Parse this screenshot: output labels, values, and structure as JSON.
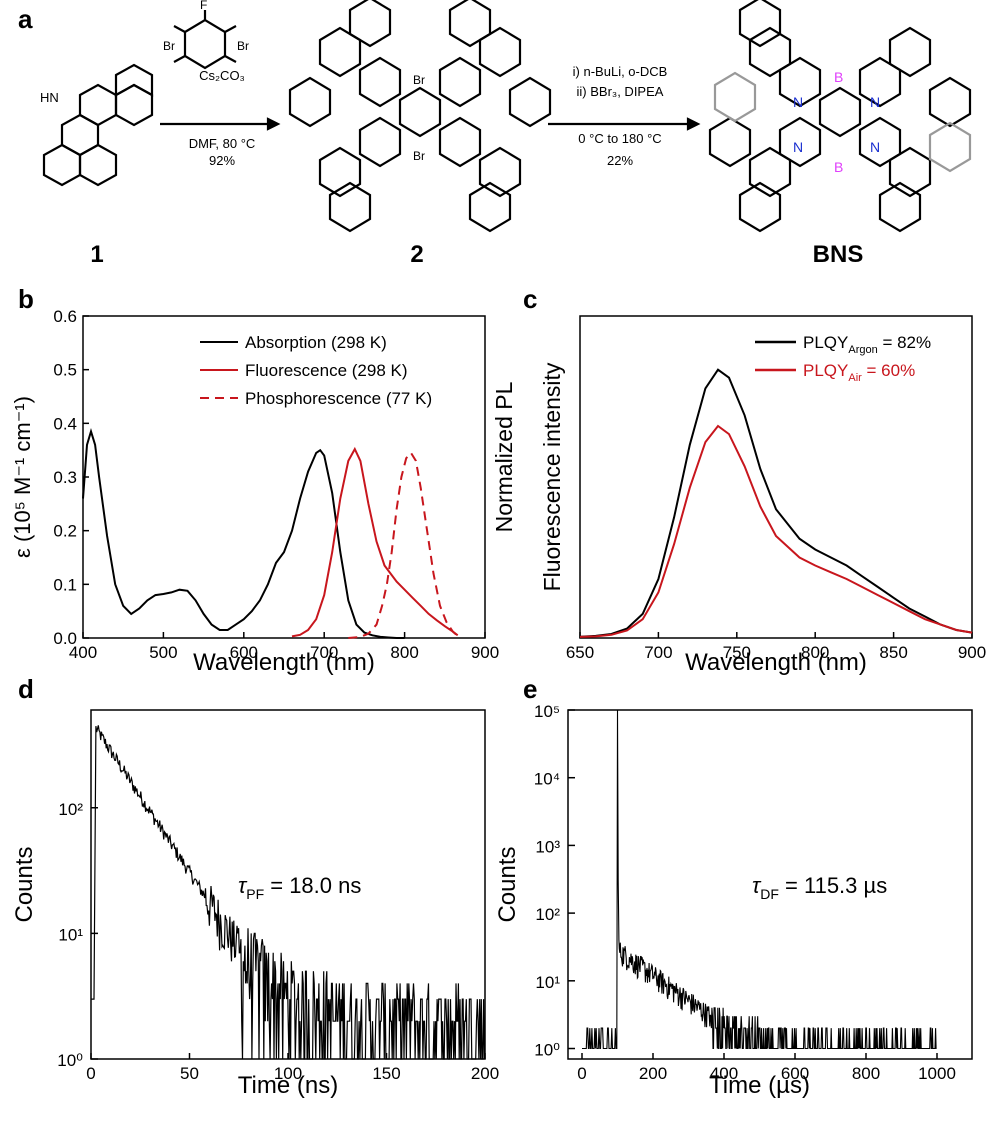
{
  "panel_labels": [
    "a",
    "b",
    "c",
    "d",
    "e"
  ],
  "scheme": {
    "compound_labels": [
      "1",
      "2",
      "BNS"
    ],
    "reagent_names": {
      "nh": "HN",
      "f": "F",
      "br": "Br",
      "n": "N",
      "b": "B"
    },
    "step1": {
      "base": "Cs₂CO₃",
      "cond": "DMF, 80 °C",
      "yield": "92%"
    },
    "step2": {
      "l1": "i) n-BuLi, o-DCB",
      "l2": "ii) BBr₃, DIPEA",
      "l3": "0 °C to 180 °C",
      "yield": "22%"
    },
    "colors": {
      "boron": "#e040fb",
      "nitrogen": "#1a2fd0",
      "gray_ring": "#999999"
    }
  },
  "colors": {
    "black": "#000000",
    "red": "#c8161d"
  },
  "chart_data": [
    {
      "panel": "b",
      "type": "line",
      "xlabel": "Wavelength (nm)",
      "ylabel": "ε (10⁵ M⁻¹ cm⁻¹)",
      "xlim": [
        400,
        900
      ],
      "ylim": [
        0,
        0.6
      ],
      "xticks": [
        400,
        500,
        600,
        700,
        800,
        900
      ],
      "yticks": [
        0.0,
        0.1,
        0.2,
        0.3,
        0.4,
        0.5,
        0.6
      ],
      "xtick_labels": [
        "400",
        "500",
        "600",
        "700",
        "800",
        "900"
      ],
      "ytick_labels": [
        "0.0",
        "0.1",
        "0.2",
        "0.3",
        "0.4",
        "0.5",
        "0.6"
      ],
      "legend_position": "top-right",
      "series": [
        {
          "name": "Absorption (298 K)",
          "color": "#000000",
          "dash": false,
          "x": [
            400,
            405,
            410,
            415,
            420,
            430,
            440,
            450,
            460,
            470,
            480,
            490,
            500,
            510,
            520,
            530,
            540,
            550,
            560,
            570,
            580,
            590,
            600,
            610,
            620,
            630,
            640,
            650,
            660,
            670,
            680,
            690,
            695,
            700,
            710,
            720,
            730,
            740,
            750,
            760,
            770,
            780,
            790,
            800
          ],
          "y": [
            0.26,
            0.36,
            0.385,
            0.36,
            0.3,
            0.19,
            0.1,
            0.06,
            0.045,
            0.055,
            0.07,
            0.08,
            0.082,
            0.085,
            0.09,
            0.088,
            0.07,
            0.045,
            0.025,
            0.015,
            0.015,
            0.025,
            0.035,
            0.05,
            0.07,
            0.1,
            0.14,
            0.16,
            0.2,
            0.26,
            0.31,
            0.345,
            0.35,
            0.34,
            0.27,
            0.16,
            0.07,
            0.025,
            0.01,
            0.005,
            0.002,
            0.001,
            0,
            0
          ]
        },
        {
          "name": "Fluorescence (298 K)",
          "color": "#c8161d",
          "dash": false,
          "x": [
            660,
            670,
            680,
            690,
            700,
            710,
            720,
            730,
            738,
            745,
            755,
            765,
            775,
            790,
            800,
            810,
            820,
            830,
            840,
            850,
            860,
            866
          ],
          "y": [
            0.003,
            0.006,
            0.015,
            0.035,
            0.08,
            0.16,
            0.26,
            0.33,
            0.352,
            0.33,
            0.25,
            0.18,
            0.135,
            0.105,
            0.09,
            0.075,
            0.06,
            0.045,
            0.033,
            0.022,
            0.012,
            0.005
          ]
        },
        {
          "name": "Phosphorescence (77 K)",
          "color": "#c8161d",
          "dash": true,
          "x": [
            730,
            745,
            755,
            765,
            772,
            778,
            784,
            790,
            796,
            802,
            808,
            814,
            820,
            828,
            836,
            844,
            852,
            860,
            866
          ],
          "y": [
            0.0,
            0.002,
            0.008,
            0.025,
            0.06,
            0.1,
            0.16,
            0.24,
            0.3,
            0.335,
            0.345,
            0.33,
            0.28,
            0.2,
            0.12,
            0.06,
            0.03,
            0.012,
            0.004
          ]
        }
      ]
    },
    {
      "panel": "c",
      "type": "line",
      "xlabel": "Wavelength (nm)",
      "ylabel": "Fluorescence intensity",
      "ylabel2": "Normalized PL",
      "xlim": [
        650,
        900
      ],
      "ylim": [
        0,
        1.2
      ],
      "xticks": [
        650,
        700,
        750,
        800,
        850,
        900
      ],
      "xtick_labels": [
        "650",
        "700",
        "750",
        "800",
        "850",
        "900"
      ],
      "legend_position": "top-right",
      "series": [
        {
          "name": "PLQY",
          "subscript": "Argon",
          "suffix": " = 82%",
          "color": "#000000",
          "x": [
            650,
            660,
            670,
            680,
            690,
            700,
            710,
            720,
            730,
            738,
            745,
            755,
            765,
            775,
            790,
            800,
            810,
            820,
            830,
            840,
            850,
            860,
            870,
            880,
            890,
            900
          ],
          "y": [
            0.005,
            0.008,
            0.015,
            0.035,
            0.09,
            0.22,
            0.45,
            0.72,
            0.93,
            1.0,
            0.97,
            0.83,
            0.63,
            0.48,
            0.37,
            0.33,
            0.3,
            0.27,
            0.23,
            0.19,
            0.15,
            0.11,
            0.08,
            0.05,
            0.03,
            0.02
          ]
        },
        {
          "name": "PLQY",
          "subscript": "Air",
          "suffix": " = 60%",
          "color": "#c8161d",
          "x": [
            650,
            660,
            670,
            680,
            690,
            700,
            710,
            720,
            730,
            738,
            745,
            755,
            765,
            775,
            790,
            800,
            810,
            820,
            830,
            840,
            850,
            860,
            870,
            880,
            890,
            900
          ],
          "y": [
            0.004,
            0.006,
            0.012,
            0.028,
            0.07,
            0.17,
            0.35,
            0.56,
            0.73,
            0.79,
            0.76,
            0.64,
            0.49,
            0.38,
            0.3,
            0.27,
            0.245,
            0.22,
            0.19,
            0.16,
            0.13,
            0.1,
            0.07,
            0.05,
            0.03,
            0.02
          ]
        }
      ]
    },
    {
      "panel": "d",
      "type": "line",
      "xlabel": "Time (ns)",
      "ylabel": "Counts",
      "xlim": [
        0,
        200
      ],
      "ylim": [
        1,
        600
      ],
      "yscale": "log",
      "xticks": [
        0,
        50,
        100,
        150,
        200
      ],
      "xtick_labels": [
        "0",
        "50",
        "100",
        "150",
        "200"
      ],
      "ytick_labels": [
        "10⁰",
        "10¹",
        "10²"
      ],
      "annotation": {
        "symbol": "τ",
        "subscript": "PF",
        "text": " = 18.0 ns"
      },
      "decay": {
        "t0": 2.5,
        "peak": 430,
        "lifetime_ns": 18.0,
        "floor": 1.5
      },
      "series": [
        {
          "color": "#000000"
        }
      ]
    },
    {
      "panel": "e",
      "type": "line",
      "xlabel": "Time (µs)",
      "ylabel": "Counts",
      "xlim": [
        0,
        1000
      ],
      "ylim": [
        0.7,
        100000
      ],
      "yscale": "log",
      "xticks": [
        0,
        200,
        400,
        600,
        800,
        1000
      ],
      "xtick_labels": [
        "0",
        "200",
        "400",
        "600",
        "800",
        "1000"
      ],
      "ytick_labels": [
        "10⁰",
        "10¹",
        "10²",
        "10³",
        "10⁴",
        "10⁵"
      ],
      "annotation": {
        "symbol": "τ",
        "subscript": "DF",
        "text": " = 115.3 µs"
      },
      "decay": {
        "t0": 100,
        "spike": 100000,
        "tail_start": 28,
        "lifetime_us": 115.3,
        "floor": 1
      },
      "series": [
        {
          "color": "#000000"
        }
      ]
    }
  ]
}
